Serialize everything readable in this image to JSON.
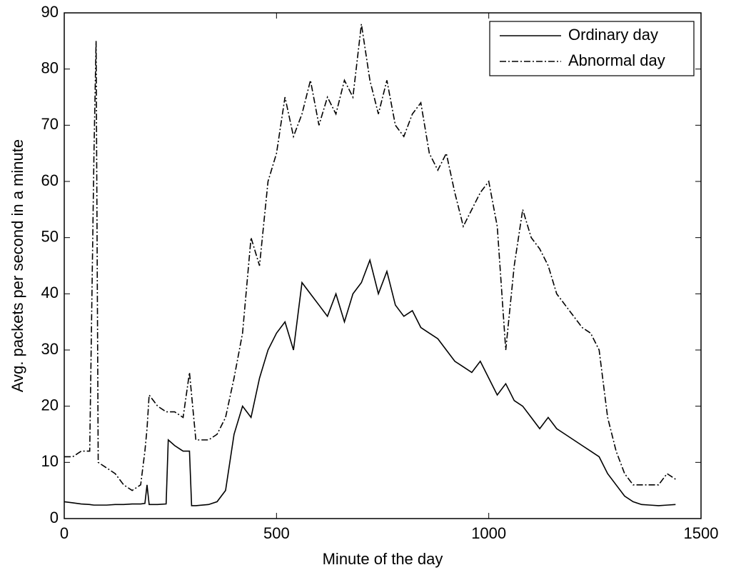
{
  "chart_data": {
    "type": "line",
    "x_label": "Minute of the day",
    "y_label": "Avg. packets per second in a minute",
    "x": [
      0,
      20,
      40,
      60,
      70,
      75,
      80,
      100,
      120,
      140,
      160,
      180,
      190,
      195,
      200,
      220,
      240,
      245,
      260,
      280,
      295,
      300,
      310,
      340,
      360,
      380,
      400,
      420,
      440,
      460,
      480,
      500,
      520,
      540,
      560,
      580,
      600,
      620,
      640,
      660,
      680,
      700,
      720,
      740,
      760,
      780,
      800,
      820,
      840,
      860,
      880,
      900,
      920,
      940,
      960,
      980,
      1000,
      1020,
      1040,
      1060,
      1080,
      1100,
      1120,
      1140,
      1160,
      1180,
      1200,
      1220,
      1240,
      1260,
      1280,
      1300,
      1320,
      1340,
      1360,
      1380,
      1400,
      1420,
      1440
    ],
    "series": [
      {
        "name": "Ordinary day",
        "color": "#000000",
        "dash": "none",
        "values": [
          3,
          2.8,
          2.6,
          2.5,
          2.4,
          2.4,
          2.4,
          2.4,
          2.5,
          2.5,
          2.6,
          2.6,
          2.7,
          6,
          2.5,
          2.5,
          2.6,
          14,
          13,
          12,
          12,
          2.3,
          2.3,
          2.5,
          3,
          5,
          15,
          20,
          18,
          25,
          30,
          33,
          35,
          30,
          42,
          40,
          38,
          36,
          40,
          35,
          40,
          42,
          46,
          40,
          44,
          38,
          36,
          37,
          34,
          33,
          32,
          30,
          28,
          27,
          26,
          28,
          25,
          22,
          24,
          21,
          20,
          18,
          16,
          18,
          16,
          15,
          14,
          13,
          12,
          11,
          8,
          6,
          4,
          3,
          2.5,
          2.4,
          2.3,
          2.4,
          2.5
        ]
      },
      {
        "name": "Abnormal day",
        "color": "#000000",
        "dash": "9,3,2,3",
        "values": [
          11,
          11,
          12,
          12,
          65,
          85,
          10,
          9,
          8,
          6,
          5,
          6,
          12,
          16,
          22,
          20,
          19,
          19,
          19,
          18,
          26,
          22,
          14,
          14,
          15,
          18,
          25,
          33,
          50,
          45,
          60,
          65,
          75,
          68,
          72,
          78,
          70,
          75,
          72,
          78,
          75,
          88,
          78,
          72,
          78,
          70,
          68,
          72,
          74,
          65,
          62,
          65,
          58,
          52,
          55,
          58,
          60,
          52,
          30,
          45,
          55,
          50,
          48,
          45,
          40,
          38,
          36,
          34,
          33,
          30,
          18,
          12,
          8,
          6,
          6,
          6,
          6,
          8,
          7
        ]
      }
    ],
    "xlim": [
      0,
      1500
    ],
    "xticks": [
      0,
      500,
      1000,
      1500
    ],
    "ylim": [
      0,
      90
    ],
    "yticks": [
      0,
      10,
      20,
      30,
      40,
      50,
      60,
      70,
      80,
      90
    ],
    "legend": "top-right"
  }
}
